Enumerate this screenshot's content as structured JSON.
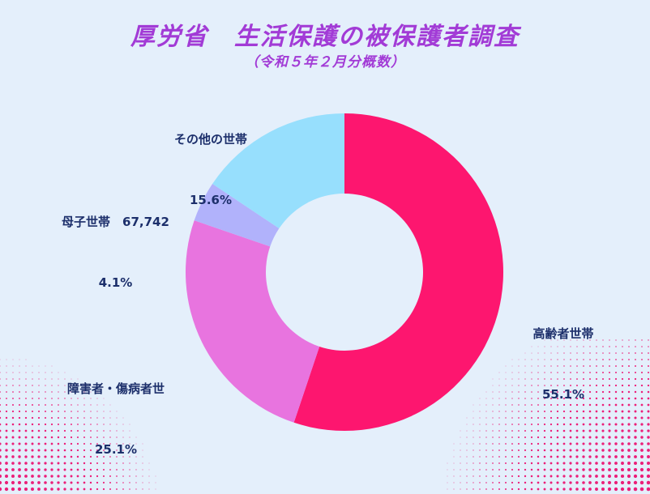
{
  "colors": {
    "background": "#e4effb",
    "title": "#a23bd6",
    "label": "#1c2f6b",
    "dots": "#ec1e79"
  },
  "header": {
    "title": "厚労省　生活保護の被保護者調査",
    "subtitle": "（令和５年２月分概数）"
  },
  "chart_data": {
    "type": "pie",
    "donut": true,
    "start": "12 o'clock",
    "direction": "clockwise",
    "slices": [
      {
        "label": "高齢者世帯",
        "value": 55.1,
        "display": "55.1%",
        "color": "#fd166f"
      },
      {
        "label": "障害者・傷病者世",
        "value": 25.1,
        "display": "25.1%",
        "color": "#e874df"
      },
      {
        "label": "母子世帯　67,742",
        "value": 4.1,
        "display": "4.1%",
        "color": "#b1b2fb"
      },
      {
        "label": "その他の世帯",
        "value": 15.6,
        "display": "15.6%",
        "color": "#97dffd"
      }
    ]
  }
}
